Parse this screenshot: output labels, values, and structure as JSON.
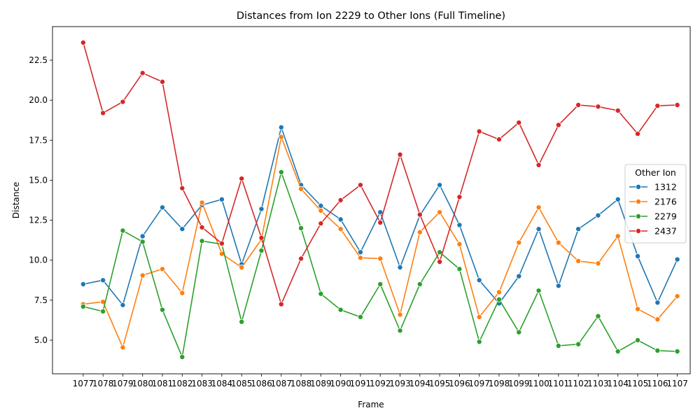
{
  "chart_data": {
    "type": "line",
    "title": "Distances from Ion 2229 to Other Ions (Full Timeline)",
    "xlabel": "Frame",
    "ylabel": "Distance",
    "ylim": [
      2.9,
      24.6
    ],
    "yticks": [
      5.0,
      7.5,
      10.0,
      12.5,
      15.0,
      17.5,
      20.0,
      22.5
    ],
    "ytick_labels": [
      "5.0",
      "7.5",
      "10.0",
      "12.5",
      "15.0",
      "17.5",
      "20.0",
      "22.5"
    ],
    "x": [
      "1077",
      "1078",
      "1079",
      "1080",
      "1081",
      "1082",
      "1083",
      "1084",
      "1085",
      "1086",
      "1087",
      "1088",
      "1089",
      "1090",
      "1091",
      "1092",
      "1093",
      "1094",
      "1095",
      "1096",
      "1097",
      "1098",
      "1099",
      "1100",
      "1101",
      "1102",
      "1103",
      "1104",
      "1105",
      "1106",
      "1107"
    ],
    "legend": {
      "title": "Other Ion",
      "position": "center-right"
    },
    "grid": false,
    "series": [
      {
        "name": "1312",
        "color": "#1f77b4",
        "values": [
          8.5,
          8.75,
          7.2,
          11.5,
          13.3,
          11.95,
          13.45,
          13.8,
          9.75,
          13.2,
          18.3,
          14.7,
          13.4,
          12.55,
          10.5,
          13.0,
          9.55,
          12.8,
          14.7,
          12.2,
          8.75,
          7.3,
          9.0,
          11.95,
          8.4,
          11.95,
          12.8,
          13.8,
          10.25,
          7.35,
          10.05
        ]
      },
      {
        "name": "2176",
        "color": "#ff7f0e",
        "values": [
          7.25,
          7.4,
          4.55,
          9.05,
          9.45,
          7.95,
          13.6,
          10.4,
          9.55,
          11.3,
          17.7,
          14.45,
          13.1,
          11.95,
          10.15,
          10.1,
          6.6,
          11.75,
          13.0,
          11.0,
          6.45,
          8.0,
          11.1,
          13.3,
          11.1,
          9.95,
          9.8,
          11.5,
          6.95,
          6.3,
          7.75
        ]
      },
      {
        "name": "2279",
        "color": "#2ca02c",
        "values": [
          7.1,
          6.8,
          11.85,
          11.15,
          6.9,
          3.95,
          11.2,
          11.0,
          6.15,
          10.6,
          15.5,
          12.0,
          7.9,
          6.9,
          6.45,
          8.5,
          5.6,
          8.5,
          10.5,
          9.45,
          4.9,
          7.55,
          5.5,
          8.1,
          4.65,
          4.75,
          6.5,
          4.3,
          5.0,
          4.35,
          4.3
        ]
      },
      {
        "name": "2437",
        "color": "#d62728",
        "values": [
          23.6,
          19.2,
          19.9,
          21.7,
          21.15,
          14.5,
          12.05,
          11.05,
          15.1,
          11.4,
          7.25,
          10.1,
          12.3,
          13.75,
          14.7,
          12.35,
          16.6,
          12.85,
          9.9,
          13.95,
          18.05,
          17.55,
          18.6,
          15.95,
          18.45,
          19.7,
          19.6,
          19.35,
          17.9,
          19.65,
          19.7
        ]
      }
    ]
  }
}
